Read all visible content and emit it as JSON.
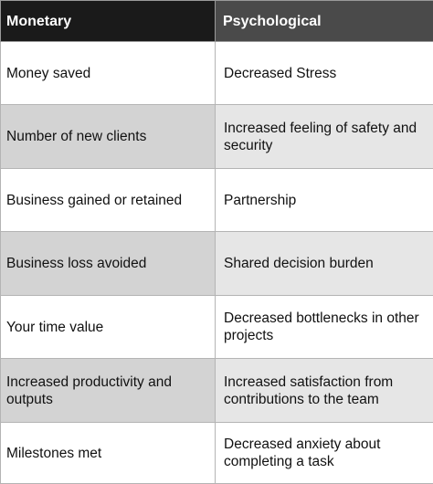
{
  "table": {
    "headers": [
      "Monetary",
      "Psychological"
    ],
    "rows": [
      [
        "Money saved",
        "Decreased Stress"
      ],
      [
        "Number of new clients",
        "Increased feeling of safety and security"
      ],
      [
        "Business gained or retained",
        "Partnership"
      ],
      [
        "Business loss avoided",
        "Shared decision burden"
      ],
      [
        "Your time value",
        "Decreased bottlenecks in other projects"
      ],
      [
        "Increased productivity and outputs",
        "Increased satisfaction from contributions to the team"
      ],
      [
        "Milestones met",
        "Decreased anxiety about completing a task"
      ]
    ]
  },
  "colors": {
    "header_left": "#1a1a1a",
    "header_right": "#4a4a4a",
    "shaded_left": "#d3d3d3",
    "shaded_right": "#e6e6e6",
    "border": "#b4b4b4"
  }
}
